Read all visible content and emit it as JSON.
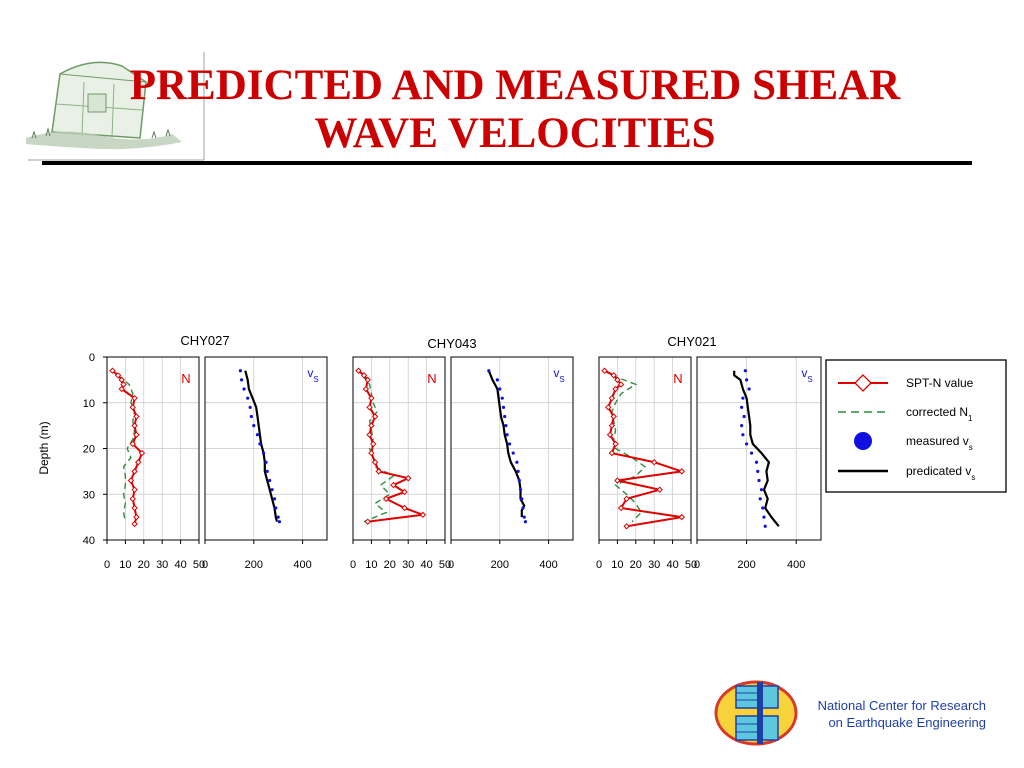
{
  "slide": {
    "title_line1": "PREDICTED AND MEASURED SHEAR",
    "title_line2": "WAVE VELOCITIES",
    "org_line1": "National Center for Research",
    "org_line2": "on Earthquake Engineering"
  },
  "colors": {
    "title": "#cc0000",
    "spt": "#e00000",
    "corrected": "#2e8b3a",
    "measured": "#1010e0",
    "predicted": "#000000",
    "org_text": "#1f3fa8"
  },
  "icons": [
    "shelter-sketch-icon",
    "ncree-logo-icon"
  ],
  "chart_data": {
    "type": "line",
    "ylabel": "Depth (m)",
    "ylim": [
      0,
      40
    ],
    "y_inverted": true,
    "yticks": [
      0,
      10,
      20,
      30,
      40
    ],
    "grid": true,
    "legend_position": "right",
    "legend": [
      {
        "key": "spt",
        "label": "SPT-N value"
      },
      {
        "key": "corrected",
        "label": "corrected N",
        "sub": "1"
      },
      {
        "key": "measured",
        "label": "measured v",
        "sub": "s"
      },
      {
        "key": "predicted",
        "label": "predicated v",
        "sub": "s"
      }
    ],
    "n_xlim": [
      0,
      50
    ],
    "n_xticks": [
      0,
      10,
      20,
      30,
      40,
      50
    ],
    "n_panel_label": "N",
    "vs_xlim": [
      0,
      500
    ],
    "vs_xticks": [
      0,
      200,
      400
    ],
    "vs_panel_label": "v",
    "vs_panel_label_sub": "S",
    "stations": [
      {
        "name": "CHY027",
        "spt": {
          "depth": [
            3,
            4,
            5,
            6,
            7,
            9,
            11,
            13,
            15,
            17,
            19,
            21,
            23,
            25,
            27,
            29,
            31,
            33,
            35,
            36.5
          ],
          "n": [
            3,
            6,
            8,
            9,
            8,
            15,
            14,
            16,
            15,
            16,
            14,
            19,
            17,
            15,
            13,
            15,
            14,
            15,
            16,
            15
          ]
        },
        "corrected": {
          "depth": [
            4,
            6,
            8,
            10,
            12,
            14,
            16,
            18,
            20,
            22,
            24,
            26,
            28,
            30,
            32,
            34,
            36
          ],
          "n": [
            6,
            12,
            14,
            13,
            15,
            14,
            15,
            14,
            11,
            13,
            9,
            10,
            10,
            9,
            10,
            9,
            10
          ]
        },
        "measured": {
          "depth": [
            3,
            5,
            7,
            9,
            11,
            13,
            15,
            17,
            19,
            21,
            23,
            25,
            27,
            29,
            31,
            33,
            35,
            36
          ],
          "vs": [
            145,
            150,
            160,
            175,
            185,
            190,
            200,
            215,
            225,
            240,
            250,
            255,
            265,
            275,
            285,
            290,
            300,
            305
          ]
        },
        "predicted": {
          "depth": [
            3,
            5,
            7,
            9,
            11,
            13,
            15,
            17,
            19,
            21,
            23,
            25,
            27,
            29,
            31,
            33,
            35,
            36
          ],
          "vs": [
            165,
            175,
            180,
            195,
            210,
            215,
            220,
            225,
            230,
            240,
            245,
            245,
            255,
            265,
            275,
            285,
            290,
            295
          ]
        }
      },
      {
        "name": "CHY043",
        "spt": {
          "depth": [
            3,
            4,
            5,
            7,
            9,
            11,
            13,
            15,
            17,
            19,
            21,
            23,
            25,
            26.5,
            28,
            29.5,
            31,
            33,
            34.5,
            36
          ],
          "n": [
            3,
            6,
            8,
            7,
            10,
            9,
            12,
            10,
            9,
            11,
            10,
            12,
            14,
            30,
            22,
            28,
            18,
            28,
            38,
            8
          ]
        },
        "corrected": {
          "depth": [
            4,
            6,
            8,
            10,
            12,
            14,
            16,
            18,
            20,
            22,
            24,
            26,
            28,
            30,
            32,
            34,
            36
          ],
          "n": [
            5,
            9,
            10,
            11,
            13,
            9,
            10,
            11,
            9,
            11,
            12,
            22,
            15,
            20,
            12,
            18,
            6
          ]
        },
        "measured": {
          "depth": [
            3,
            5,
            7,
            9,
            11,
            13,
            15,
            17,
            19,
            21,
            23,
            25,
            27,
            29,
            31,
            33,
            35,
            36
          ],
          "vs": [
            155,
            190,
            200,
            210,
            215,
            220,
            225,
            230,
            240,
            255,
            270,
            275,
            280,
            285,
            290,
            295,
            300,
            305
          ]
        },
        "predicted": {
          "depth": [
            3,
            5,
            7,
            9,
            11,
            13,
            15,
            17,
            19,
            21,
            23,
            25,
            27,
            29,
            31,
            32.5,
            33.5,
            35
          ],
          "vs": [
            155,
            170,
            190,
            195,
            200,
            205,
            215,
            220,
            230,
            235,
            245,
            265,
            280,
            285,
            285,
            300,
            290,
            290
          ]
        }
      },
      {
        "name": "CHY021",
        "spt": {
          "depth": [
            3,
            4,
            5,
            6,
            7,
            9,
            11,
            13,
            15,
            17,
            19,
            21,
            23,
            25,
            27,
            29,
            31,
            33,
            35,
            37
          ],
          "n": [
            3,
            8,
            10,
            12,
            9,
            7,
            5,
            8,
            7,
            6,
            9,
            7,
            30,
            45,
            10,
            33,
            15,
            12,
            45,
            15
          ]
        },
        "corrected": {
          "depth": [
            4,
            6,
            8,
            10,
            12,
            14,
            16,
            18,
            20,
            22,
            24,
            26,
            28,
            30,
            32,
            34,
            36
          ],
          "n": [
            7,
            20,
            12,
            9,
            7,
            8,
            9,
            8,
            9,
            18,
            25,
            20,
            9,
            15,
            20,
            23,
            18
          ]
        },
        "measured": {
          "depth": [
            3,
            5,
            7,
            9,
            11,
            13,
            15,
            17,
            19,
            21,
            23,
            25,
            27,
            29,
            31,
            33,
            35,
            37
          ],
          "vs": [
            195,
            200,
            210,
            185,
            180,
            190,
            180,
            185,
            200,
            220,
            240,
            245,
            250,
            260,
            255,
            265,
            270,
            275
          ]
        },
        "predicted": {
          "depth": [
            3,
            4,
            5,
            7,
            9,
            11,
            13,
            15,
            17,
            19,
            21,
            23,
            25,
            27,
            29,
            31,
            33,
            35,
            37
          ],
          "vs": [
            150,
            150,
            175,
            185,
            200,
            205,
            210,
            215,
            215,
            225,
            260,
            290,
            280,
            285,
            270,
            285,
            275,
            300,
            330
          ]
        }
      }
    ]
  }
}
